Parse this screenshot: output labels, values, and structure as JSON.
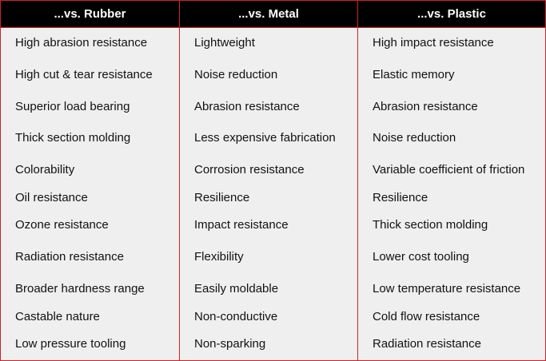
{
  "table": {
    "columns": [
      {
        "header": "...vs. Rubber",
        "items": [
          "High abrasion resistance",
          "High cut & tear resistance",
          "Superior load bearing",
          "Thick section molding",
          "Colorability",
          "Oil resistance",
          "Ozone resistance",
          "Radiation resistance",
          "Broader hardness range",
          "Castable nature",
          "Low pressure tooling"
        ]
      },
      {
        "header": "...vs. Metal",
        "items": [
          "Lightweight",
          "Noise reduction",
          "Abrasion resistance",
          "Less expensive fabrication",
          "Corrosion resistance",
          "Resilience",
          "Impact resistance",
          "Flexibility",
          "Easily moldable",
          "Non-conductive",
          "Non-sparking"
        ]
      },
      {
        "header": "...vs. Plastic",
        "items": [
          "High impact resistance",
          "Elastic memory",
          "Abrasion resistance",
          "Noise reduction",
          "Variable coefficient of friction",
          "Resilience",
          "Thick section molding",
          "Lower cost tooling",
          "Low temperature resistance",
          "Cold flow resistance",
          "Radiation resistance"
        ]
      }
    ],
    "colors": {
      "border": "#d32027",
      "header_bg": "#000000",
      "header_text": "#ffffff",
      "body_bg": "#efefef"
    }
  }
}
